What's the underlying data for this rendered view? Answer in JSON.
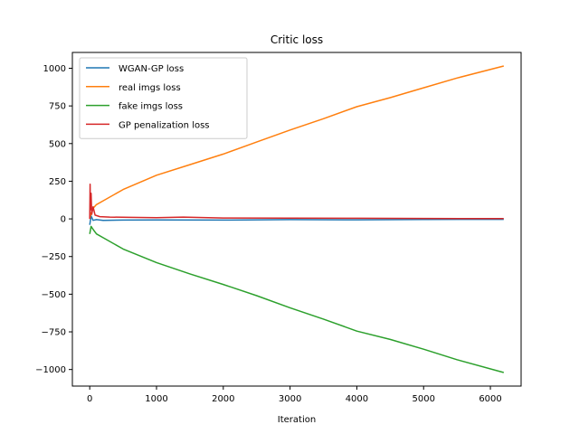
{
  "chart_data": {
    "type": "line",
    "title": "Critic loss",
    "xlabel": "Iteration",
    "ylabel": "",
    "xlim": [
      -260,
      6460
    ],
    "ylim": [
      -1110,
      1105
    ],
    "xticks": [
      0,
      1000,
      2000,
      3000,
      4000,
      5000,
      6000
    ],
    "xtick_labels": [
      "0",
      "1000",
      "2000",
      "3000",
      "4000",
      "5000",
      "6000"
    ],
    "yticks": [
      -1000,
      -750,
      -500,
      -250,
      0,
      250,
      500,
      750,
      1000
    ],
    "ytick_labels": [
      "−1000",
      "−750",
      "−500",
      "−250",
      "0",
      "250",
      "500",
      "750",
      "1000"
    ],
    "grid": false,
    "legend_position": "top-left",
    "series": [
      {
        "name": "WGAN-GP loss",
        "color": "#1f77b4",
        "x": [
          0,
          20,
          50,
          100,
          200,
          500,
          1000,
          2000,
          3000,
          4000,
          5000,
          6200
        ],
        "y": [
          -40,
          20,
          -10,
          -5,
          -10,
          -8,
          -7,
          -8,
          -5,
          -6,
          -4,
          -3
        ]
      },
      {
        "name": "real imgs loss",
        "color": "#ff7f0e",
        "x": [
          0,
          20,
          50,
          100,
          200,
          500,
          1000,
          1500,
          2000,
          2500,
          3000,
          3500,
          4000,
          4500,
          5000,
          5500,
          6200
        ],
        "y": [
          0,
          40,
          70,
          95,
          120,
          195,
          290,
          360,
          430,
          510,
          590,
          665,
          745,
          805,
          870,
          935,
          1015
        ]
      },
      {
        "name": "fake imgs loss",
        "color": "#2ca02c",
        "x": [
          0,
          20,
          50,
          100,
          200,
          500,
          1000,
          1500,
          2000,
          2500,
          3000,
          3500,
          4000,
          4500,
          5000,
          5500,
          6200
        ],
        "y": [
          -100,
          -50,
          -70,
          -100,
          -125,
          -200,
          -290,
          -365,
          -435,
          -510,
          -590,
          -665,
          -745,
          -800,
          -865,
          -935,
          -1020
        ]
      },
      {
        "name": "GP penalization loss",
        "color": "#d62728",
        "x": [
          0,
          5,
          10,
          20,
          30,
          50,
          80,
          150,
          300,
          600,
          1000,
          1400,
          2000,
          3000,
          4000,
          5000,
          6200
        ],
        "y": [
          0,
          230,
          60,
          170,
          30,
          80,
          25,
          15,
          12,
          10,
          8,
          12,
          6,
          5,
          4,
          3,
          2
        ]
      }
    ]
  }
}
